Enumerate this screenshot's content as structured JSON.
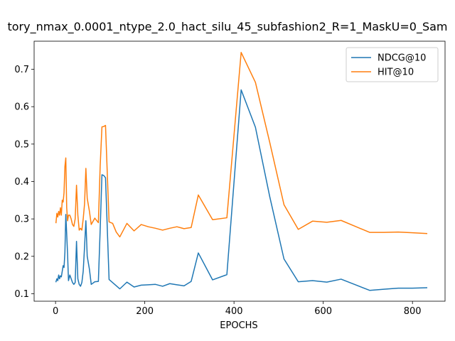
{
  "chart_data": {
    "type": "line",
    "title": "tory_nmax_0.0001_ntype_2.0_hact_silu_45_subfashion2_R=1_MaskU=0_Sam",
    "xlabel": "EPOCHS",
    "ylabel": "",
    "xlim": [
      -48,
      873
    ],
    "ylim": [
      0.08,
      0.775
    ],
    "xticks": [
      0,
      200,
      400,
      600,
      800
    ],
    "yticks": [
      0.1,
      0.2,
      0.3,
      0.4,
      0.5,
      0.6,
      0.7
    ],
    "ytick_labels": [
      "0.1",
      "0.2",
      "0.3",
      "0.4",
      "0.5",
      "0.6",
      "0.7"
    ],
    "legend_position": "upper right",
    "grid": false,
    "series": [
      {
        "name": "NDCG@10",
        "color": "#1f77b4",
        "x": [
          1,
          3,
          5,
          7,
          9,
          11,
          13,
          15,
          17,
          19,
          21,
          23,
          25,
          27,
          29,
          32,
          35,
          38,
          41,
          44,
          47,
          50,
          53,
          56,
          59,
          62,
          65,
          68,
          71,
          76,
          80,
          88,
          96,
          100,
          104,
          108,
          112,
          120,
          144,
          160,
          176,
          192,
          208,
          224,
          240,
          256,
          272,
          288,
          304,
          320,
          352,
          384,
          416,
          448,
          480,
          512,
          544,
          576,
          608,
          640,
          672,
          704,
          736,
          768,
          800,
          832
        ],
        "y": [
          0.132,
          0.14,
          0.135,
          0.15,
          0.14,
          0.148,
          0.145,
          0.16,
          0.175,
          0.17,
          0.21,
          0.312,
          0.26,
          0.205,
          0.135,
          0.15,
          0.14,
          0.13,
          0.125,
          0.13,
          0.24,
          0.14,
          0.125,
          0.12,
          0.13,
          0.16,
          0.225,
          0.295,
          0.2,
          0.165,
          0.125,
          0.132,
          0.133,
          0.27,
          0.418,
          0.416,
          0.41,
          0.138,
          0.113,
          0.131,
          0.118,
          0.123,
          0.124,
          0.125,
          0.12,
          0.127,
          0.124,
          0.121,
          0.133,
          0.209,
          0.137,
          0.151,
          0.645,
          0.545,
          0.36,
          0.193,
          0.132,
          0.135,
          0.131,
          0.139,
          0.124,
          0.109,
          0.112,
          0.115,
          0.115,
          0.116
        ]
      },
      {
        "name": "HIT@10",
        "color": "#ff7f0e",
        "x": [
          1,
          3,
          5,
          7,
          9,
          11,
          13,
          15,
          17,
          19,
          21,
          23,
          25,
          27,
          29,
          32,
          35,
          38,
          41,
          44,
          47,
          50,
          53,
          56,
          59,
          62,
          65,
          68,
          71,
          76,
          80,
          88,
          96,
          100,
          104,
          108,
          112,
          120,
          128,
          136,
          144,
          160,
          176,
          192,
          208,
          224,
          240,
          256,
          272,
          288,
          304,
          320,
          352,
          384,
          416,
          448,
          480,
          512,
          544,
          576,
          608,
          640,
          672,
          704,
          736,
          768,
          800,
          832
        ],
        "y": [
          0.29,
          0.315,
          0.305,
          0.32,
          0.31,
          0.33,
          0.31,
          0.35,
          0.345,
          0.37,
          0.44,
          0.463,
          0.33,
          0.295,
          0.31,
          0.31,
          0.3,
          0.285,
          0.28,
          0.3,
          0.39,
          0.31,
          0.27,
          0.275,
          0.27,
          0.3,
          0.34,
          0.435,
          0.355,
          0.32,
          0.285,
          0.302,
          0.29,
          0.44,
          0.546,
          0.547,
          0.55,
          0.292,
          0.288,
          0.265,
          0.252,
          0.288,
          0.268,
          0.285,
          0.279,
          0.275,
          0.27,
          0.275,
          0.279,
          0.274,
          0.277,
          0.364,
          0.298,
          0.303,
          0.745,
          0.665,
          0.505,
          0.338,
          0.272,
          0.294,
          0.291,
          0.296,
          0.28,
          0.264,
          0.264,
          0.265,
          0.263,
          0.261
        ]
      }
    ]
  }
}
